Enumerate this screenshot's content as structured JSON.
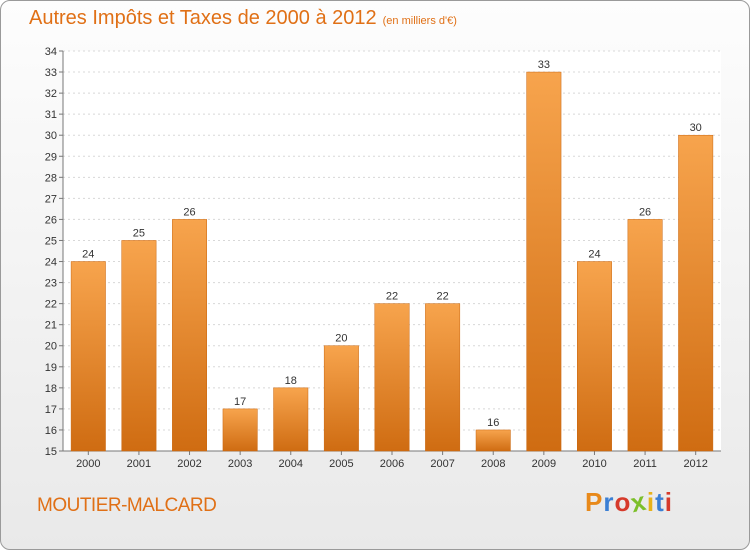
{
  "header": {
    "title": "Autres Impôts et Taxes de 2000 à 2012",
    "unit": "(en milliers d'€)"
  },
  "footer": {
    "town": "MOUTIER-MALCARD",
    "logo": "Proxiti"
  },
  "colors": {
    "title": "#e07016",
    "bar_top": "#f7a44d",
    "bar_bottom": "#cf6c12"
  },
  "chart_data": {
    "type": "bar",
    "categories": [
      "2000",
      "2001",
      "2002",
      "2003",
      "2004",
      "2005",
      "2006",
      "2007",
      "2008",
      "2009",
      "2010",
      "2011",
      "2012"
    ],
    "values": [
      24,
      25,
      26,
      17,
      18,
      20,
      22,
      22,
      16,
      33,
      24,
      26,
      30
    ],
    "ylim": [
      15,
      34
    ],
    "yticks": [
      15,
      16,
      17,
      18,
      19,
      20,
      21,
      22,
      23,
      24,
      25,
      26,
      27,
      28,
      29,
      30,
      31,
      32,
      33,
      34
    ],
    "grid": true,
    "title": "Autres Impôts et Taxes de 2000 à 2012",
    "xlabel": "",
    "ylabel": ""
  }
}
